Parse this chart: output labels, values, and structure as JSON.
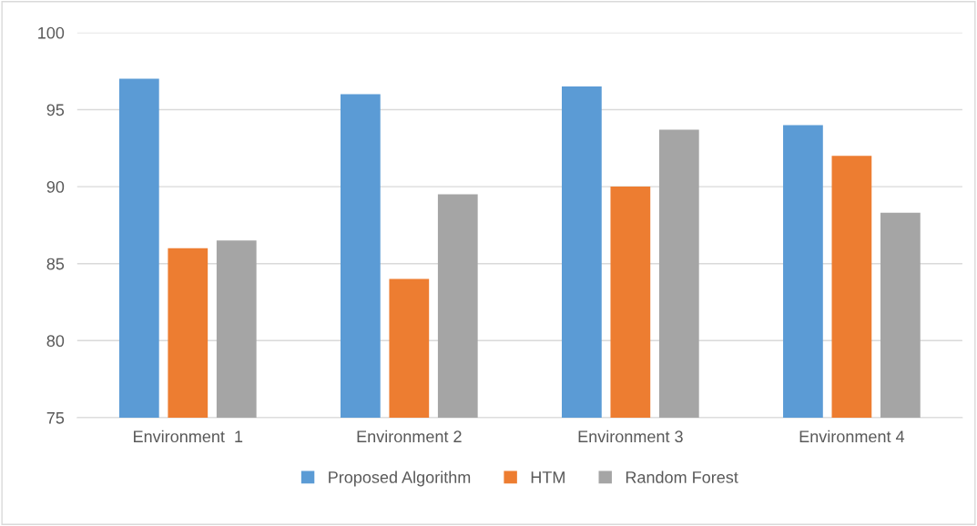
{
  "chart_data": {
    "type": "bar",
    "categories": [
      "Environment  1",
      "Environment 2",
      "Environment 3",
      "Environment 4"
    ],
    "series": [
      {
        "name": "Proposed Algorithm",
        "color": "#5b9bd5",
        "values": [
          97,
          96,
          96.5,
          94
        ]
      },
      {
        "name": "HTM",
        "color": "#ed7d31",
        "values": [
          86,
          84,
          90,
          92
        ]
      },
      {
        "name": "Random Forest",
        "color": "#a5a5a5",
        "values": [
          86.5,
          89.5,
          93.7,
          88.3
        ]
      }
    ],
    "ylim": [
      75,
      100
    ],
    "yticks": [
      75,
      80,
      85,
      90,
      95,
      100
    ],
    "grid": "y",
    "legend": "bottom"
  }
}
